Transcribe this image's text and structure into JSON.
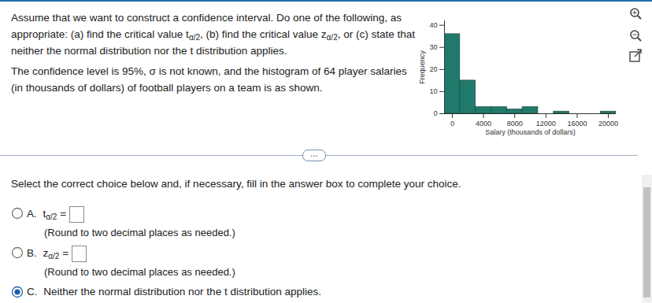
{
  "question": {
    "paragraphs": [
      [
        {
          "text": "Assume that we want to construct a confidence interval. Do one of the following, as appropriate: (a) find the critical value t"
        },
        {
          "sub": "α/2"
        },
        {
          "text": ", (b) find the critical value z"
        },
        {
          "sub": "α/2"
        },
        {
          "text": ", or (c) state that neither the normal distribution nor the t distribution applies."
        }
      ],
      [
        {
          "text": "The confidence level is 95%, σ is not known, and the histogram of 64 player salaries (in thousands of dollars) of football players on a team is as shown."
        }
      ]
    ]
  },
  "chart_data": {
    "type": "histogram",
    "bins": [
      -1000,
      1000,
      3000,
      5000,
      7000,
      9000,
      11000,
      13000,
      15000,
      17000,
      19000,
      21000
    ],
    "counts": [
      36,
      15,
      3,
      3,
      2,
      3,
      0,
      1,
      0,
      0,
      1
    ],
    "color": "#1f7a6b",
    "xlim": [
      -1000,
      21000
    ],
    "ylim": [
      0,
      42
    ],
    "xticks": [
      0,
      4000,
      8000,
      12000,
      16000,
      20000
    ],
    "yticks": [
      0,
      10,
      20,
      30,
      40
    ],
    "xlabel": "Salary (thousands of dollars)",
    "ylabel": "Frequency"
  },
  "divider": "...",
  "instruction": "Select the correct choice below and, if necessary, fill in the answer box to complete your choice.",
  "choices": [
    {
      "letter": "A.",
      "lhs": [
        {
          "text": "t"
        },
        {
          "sub": "α/2"
        },
        {
          "text": " ="
        }
      ],
      "note": "(Round to two decimal places as needed.)",
      "selected": false
    },
    {
      "letter": "B.",
      "lhs": [
        {
          "text": "z"
        },
        {
          "sub": "α/2"
        },
        {
          "text": " ="
        }
      ],
      "note": "(Round to two decimal places as needed.)",
      "selected": false
    },
    {
      "letter": "C.",
      "text": "Neither the normal distribution nor the t distribution applies.",
      "selected": true
    }
  ]
}
